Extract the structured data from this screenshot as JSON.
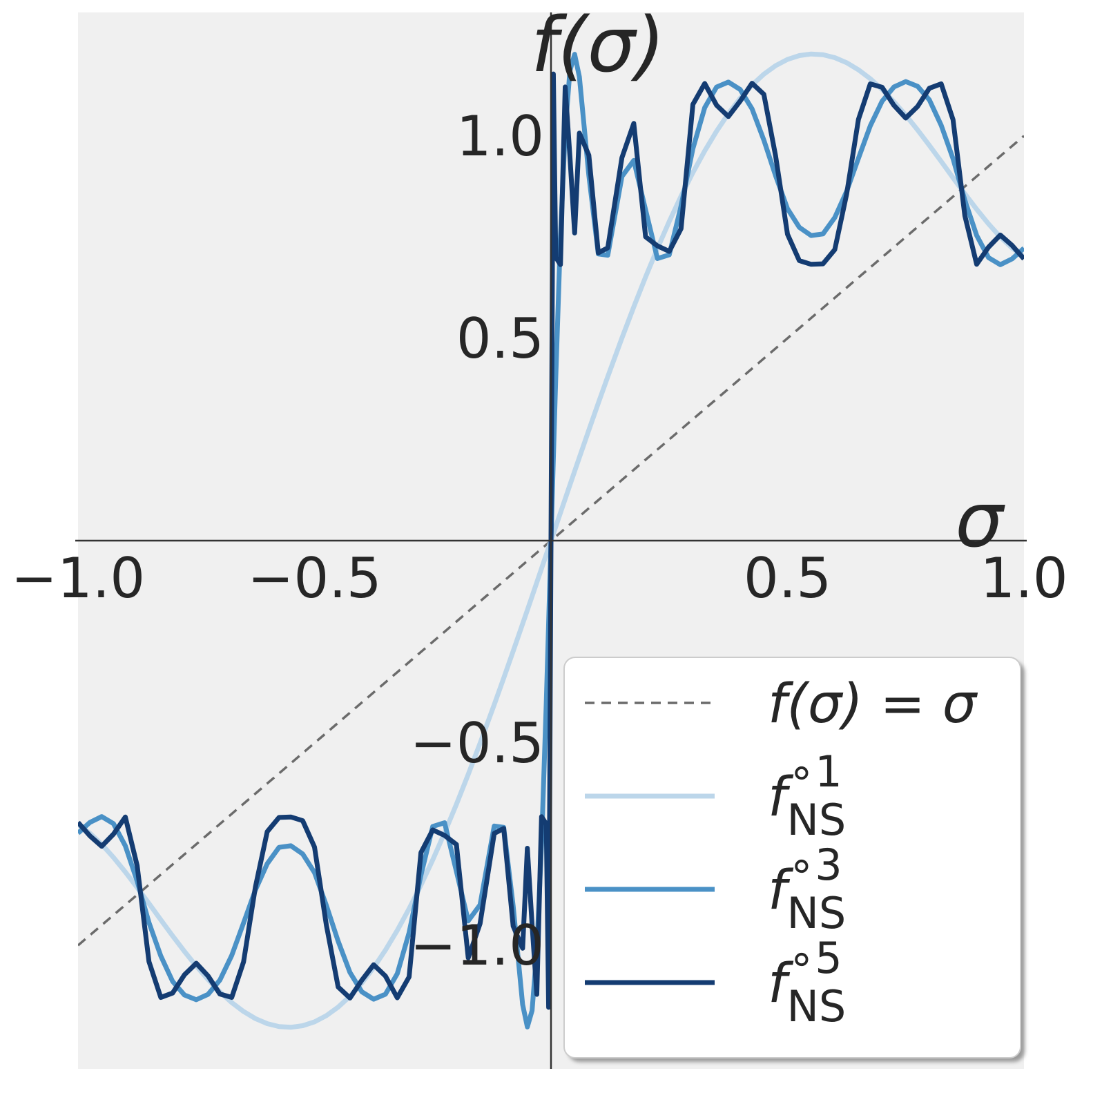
{
  "chart_data": {
    "type": "line",
    "x_label": "σ",
    "y_label": "f(σ)",
    "xlim": [
      -1,
      1
    ],
    "ylim": [
      -1.305,
      1.305
    ],
    "xticks": [
      {
        "value": -1,
        "label": "−1.0"
      },
      {
        "value": -0.5,
        "label": "−0.5"
      },
      {
        "value": 0.5,
        "label": "0.5"
      },
      {
        "value": 1,
        "label": "1.0"
      }
    ],
    "yticks": [
      {
        "value": -1,
        "label": "−1.0"
      },
      {
        "value": -0.5,
        "label": "−0.5"
      },
      {
        "value": 0.5,
        "label": "0.5"
      },
      {
        "value": 1,
        "label": "1.0"
      }
    ],
    "grid": true,
    "legend": "lower right",
    "x": [
      -1,
      -0.975,
      -0.95,
      -0.925,
      -0.9,
      -0.875,
      -0.85,
      -0.825,
      -0.8,
      -0.775,
      -0.75,
      -0.725,
      -0.7,
      -0.675,
      -0.65,
      -0.625,
      -0.6,
      -0.575,
      -0.55,
      -0.525,
      -0.5,
      -0.475,
      -0.45,
      -0.425,
      -0.4,
      -0.375,
      -0.35,
      -0.325,
      -0.3,
      -0.275,
      -0.25,
      -0.225,
      -0.2,
      -0.175,
      -0.15,
      -0.12,
      -0.1,
      -0.08,
      -0.06,
      -0.05,
      -0.04,
      -0.03,
      -0.02,
      -0.01,
      -0.005,
      0,
      0.005,
      0.01,
      0.02,
      0.03,
      0.04,
      0.05,
      0.06,
      0.08,
      0.1,
      0.12,
      0.15,
      0.175,
      0.2,
      0.225,
      0.25,
      0.275,
      0.3,
      0.325,
      0.35,
      0.375,
      0.4,
      0.425,
      0.45,
      0.475,
      0.5,
      0.525,
      0.55,
      0.575,
      0.6,
      0.625,
      0.65,
      0.675,
      0.7,
      0.725,
      0.75,
      0.775,
      0.8,
      0.825,
      0.85,
      0.875,
      0.9,
      0.925,
      0.95,
      0.975,
      1
    ],
    "series": [
      {
        "name": "f(σ) = σ",
        "color": "#6b6b6b",
        "dashed": true,
        "values": [
          -1,
          -0.975,
          -0.95,
          -0.925,
          -0.9,
          -0.875,
          -0.85,
          -0.825,
          -0.8,
          -0.775,
          -0.75,
          -0.725,
          -0.7,
          -0.675,
          -0.65,
          -0.625,
          -0.6,
          -0.575,
          -0.55,
          -0.525,
          -0.5,
          -0.475,
          -0.45,
          -0.425,
          -0.4,
          -0.375,
          -0.35,
          -0.325,
          -0.3,
          -0.275,
          -0.25,
          -0.225,
          -0.2,
          -0.175,
          -0.15,
          -0.12,
          -0.1,
          -0.08,
          -0.06,
          -0.05,
          -0.04,
          -0.03,
          -0.02,
          -0.01,
          -0.005,
          0,
          0.005,
          0.01,
          0.02,
          0.03,
          0.04,
          0.05,
          0.06,
          0.08,
          0.1,
          0.12,
          0.15,
          0.175,
          0.2,
          0.225,
          0.25,
          0.275,
          0.3,
          0.325,
          0.35,
          0.375,
          0.4,
          0.425,
          0.45,
          0.475,
          0.5,
          0.525,
          0.55,
          0.575,
          0.6,
          0.625,
          0.65,
          0.675,
          0.7,
          0.725,
          0.75,
          0.775,
          0.8,
          0.825,
          0.85,
          0.875,
          0.9,
          0.925,
          0.95,
          0.975,
          1
        ]
      },
      {
        "name": "fNS∘1",
        "color": "#bcd6ea",
        "dashed": false,
        "values": [
          -0.701,
          -0.7227,
          -0.7502,
          -0.7827,
          -0.8186,
          -0.857,
          -0.8964,
          -0.9369,
          -0.9765,
          -1.0148,
          -1.0511,
          -1.0845,
          -1.1148,
          -1.1412,
          -1.1633,
          -1.1808,
          -1.1933,
          -1.2005,
          -1.2023,
          -1.1984,
          -1.1889,
          -1.1735,
          -1.1524,
          -1.1255,
          -1.093,
          -1.055,
          -1.0115,
          -0.9629,
          -0.9094,
          -0.8511,
          -0.7885,
          -0.7218,
          -0.6514,
          -0.5775,
          -0.5007,
          -0.4051,
          -0.3397,
          -0.2731,
          -0.2056,
          -0.1716,
          -0.1375,
          -0.1032,
          -0.0689,
          -0.0344,
          -0.0172,
          0,
          0.0172,
          0.0344,
          0.0689,
          0.1032,
          0.1375,
          0.1716,
          0.2056,
          0.2731,
          0.3397,
          0.4051,
          0.5007,
          0.5775,
          0.6514,
          0.7218,
          0.7885,
          0.8511,
          0.9094,
          0.9629,
          1.0115,
          1.055,
          1.093,
          1.1255,
          1.1524,
          1.1735,
          1.1889,
          1.1984,
          1.2023,
          1.2005,
          1.1933,
          1.1808,
          1.1633,
          1.1412,
          1.1148,
          1.0845,
          1.0511,
          1.0148,
          0.9765,
          0.9369,
          0.8964,
          0.857,
          0.8186,
          0.7827,
          0.7502,
          0.7227,
          0.701
        ]
      },
      {
        "name": "fNS∘3",
        "color": "#4a91c6",
        "dashed": false,
        "values": [
          -0.7226,
          -0.6962,
          -0.6818,
          -0.6993,
          -0.754,
          -0.841,
          -0.9437,
          -1.0261,
          -1.0889,
          -1.1225,
          -1.1342,
          -1.1208,
          -1.0856,
          -1.0247,
          -0.9445,
          -0.8631,
          -0.7983,
          -0.7577,
          -0.7538,
          -0.774,
          -0.8201,
          -0.9011,
          -0.9897,
          -1.067,
          -1.1146,
          -1.1329,
          -1.1206,
          -1.0698,
          -0.9684,
          -0.8267,
          -0.7061,
          -0.6969,
          -0.817,
          -0.9394,
          -0.8997,
          -0.705,
          -0.7084,
          -0.9024,
          -1.146,
          -1.2015,
          -1.161,
          -1.012,
          -0.7506,
          -0.4006,
          -0.2033,
          0,
          0.2033,
          0.4006,
          0.7506,
          1.012,
          1.161,
          1.2015,
          1.146,
          0.9024,
          0.7084,
          0.705,
          0.8997,
          0.9394,
          0.817,
          0.6969,
          0.7061,
          0.8267,
          0.9684,
          1.0698,
          1.1206,
          1.1329,
          1.1146,
          1.067,
          0.9897,
          0.9011,
          0.8201,
          0.774,
          0.7538,
          0.7577,
          0.7983,
          0.8631,
          0.9445,
          1.0247,
          1.0856,
          1.1208,
          1.1342,
          1.1225,
          1.0889,
          1.0261,
          0.9437,
          0.841,
          0.754,
          0.6993,
          0.6818,
          0.6962,
          0.7226
        ]
      },
      {
        "name": "fNS∘5",
        "color": "#143c72",
        "dashed": false,
        "values": [
          -0.6962,
          -0.7292,
          -0.7551,
          -0.725,
          -0.6828,
          -0.8028,
          -1.04,
          -1.1286,
          -1.1177,
          -1.0726,
          -1.0441,
          -1.0755,
          -1.1202,
          -1.1284,
          -1.0406,
          -0.8558,
          -0.7191,
          -0.6838,
          -0.6827,
          -0.6918,
          -0.7571,
          -0.9496,
          -1.1028,
          -1.13,
          -1.086,
          -1.0478,
          -1.0758,
          -1.1294,
          -1.0778,
          -0.7709,
          -0.7146,
          -0.7283,
          -0.7506,
          -1.0308,
          -0.9464,
          -0.7233,
          -0.7111,
          -0.9524,
          -1.007,
          -0.76,
          -0.949,
          -1.121,
          -0.682,
          -0.7,
          -1.153,
          0,
          1.153,
          0.7,
          0.682,
          1.121,
          0.949,
          0.76,
          1.007,
          0.9524,
          0.7111,
          0.7233,
          0.9464,
          1.0308,
          0.7506,
          0.7283,
          0.7146,
          0.7709,
          1.0778,
          1.1294,
          1.0758,
          1.0478,
          1.086,
          1.13,
          1.1028,
          0.9496,
          0.7571,
          0.6918,
          0.6827,
          0.6838,
          0.7191,
          0.8558,
          1.0406,
          1.1284,
          1.1202,
          1.0755,
          1.0441,
          1.0726,
          1.1177,
          1.1286,
          1.04,
          0.8028,
          0.6828,
          0.725,
          0.7551,
          0.7292,
          0.6962
        ]
      }
    ]
  }
}
